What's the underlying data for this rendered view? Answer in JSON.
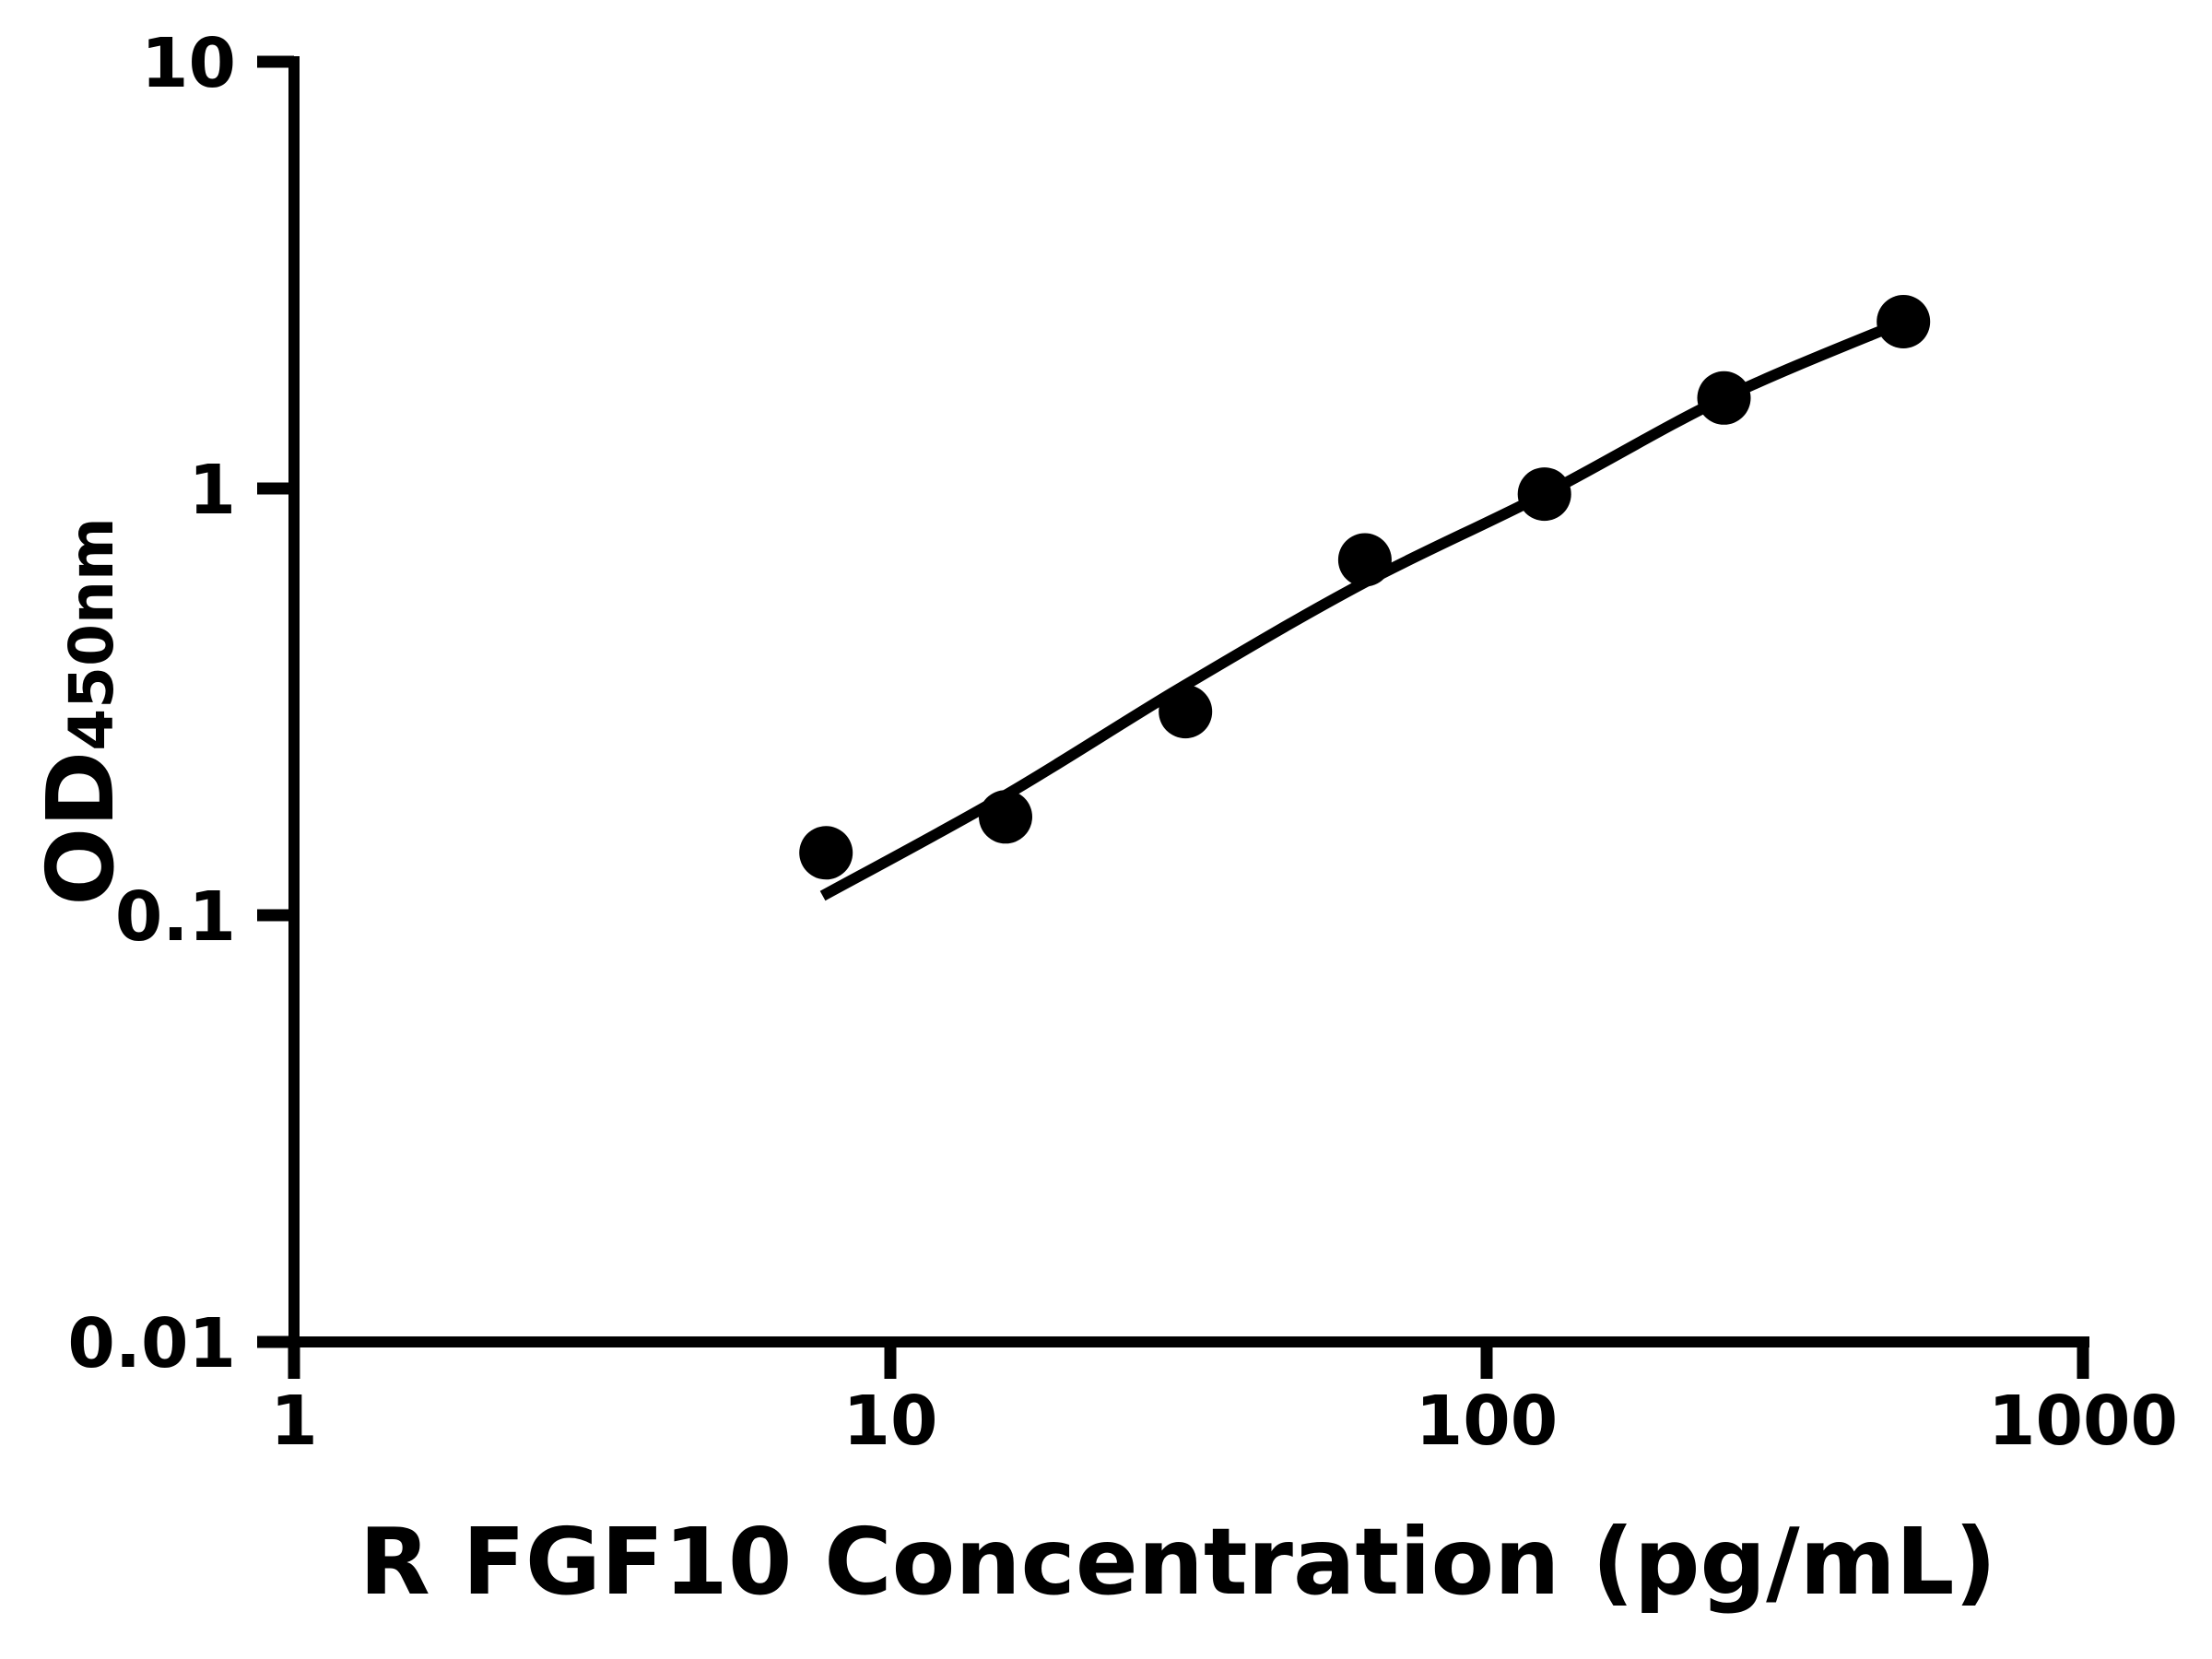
{
  "chart_data": {
    "type": "scatter",
    "title": "",
    "xlabel": "R FGF10 Concentration (pg/mL)",
    "ylabel_main": "OD",
    "ylabel_sub": "450nm",
    "x_scale": "log",
    "y_scale": "log",
    "xlim": [
      1,
      1000
    ],
    "ylim": [
      0.01,
      10
    ],
    "grid": false,
    "legend": false,
    "x_ticks": [
      {
        "value": 1,
        "label": "1"
      },
      {
        "value": 10,
        "label": "10"
      },
      {
        "value": 100,
        "label": "100"
      },
      {
        "value": 1000,
        "label": "1000"
      }
    ],
    "y_ticks": [
      {
        "value": 10,
        "label": "10"
      },
      {
        "value": 1,
        "label": "1"
      },
      {
        "value": 0.1,
        "label": "0.1"
      },
      {
        "value": 0.01,
        "label": "0.01"
      }
    ],
    "series": [
      {
        "name": "standard points",
        "type": "scatter",
        "marker": "circle",
        "color": "#000000",
        "x": [
          7.8,
          15.6,
          31.25,
          62.5,
          125,
          250,
          500
        ],
        "y": [
          0.14,
          0.17,
          0.3,
          0.68,
          0.97,
          1.63,
          2.46
        ]
      },
      {
        "name": "fitted curve",
        "type": "line",
        "color": "#000000",
        "x": [
          7.7,
          15.5,
          31.1,
          62.1,
          125,
          250,
          500
        ],
        "y": [
          0.111,
          0.19,
          0.345,
          0.6,
          0.97,
          1.63,
          2.46
        ]
      }
    ],
    "colors": {
      "background": "#ffffff",
      "ink": "#000000"
    }
  }
}
